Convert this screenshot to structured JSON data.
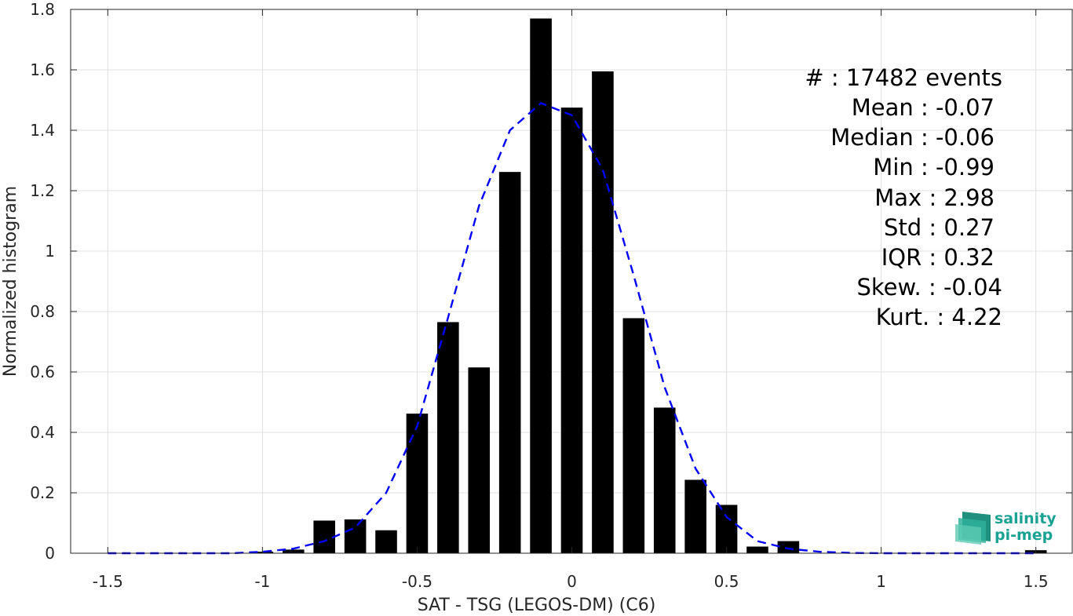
{
  "chart_data": {
    "type": "bar",
    "xlabel": "SAT - TSG (LEGOS-DM) (C6)",
    "ylabel": "Normalized histogram",
    "xlim": [
      -1.62,
      1.62
    ],
    "ylim": [
      0,
      1.8
    ],
    "xticks": [
      -1.5,
      -1,
      -0.5,
      0,
      0.5,
      1,
      1.5
    ],
    "xtick_labels": [
      "-1.5",
      "-1",
      "-0.5",
      "0",
      "0.5",
      "1",
      "1.5"
    ],
    "yticks": [
      0,
      0.2,
      0.4,
      0.6,
      0.8,
      1,
      1.2,
      1.4,
      1.6,
      1.8
    ],
    "ytick_labels": [
      "0",
      "0.2",
      "0.4",
      "0.6",
      "0.8",
      "1",
      "1.2",
      "1.4",
      "1.6",
      "1.8"
    ],
    "grid": true,
    "bin_width": 0.07,
    "bars": {
      "x": [
        -1.0,
        -0.9,
        -0.8,
        -0.7,
        -0.6,
        -0.5,
        -0.4,
        -0.3,
        -0.2,
        -0.1,
        0.0,
        0.1,
        0.2,
        0.3,
        0.4,
        0.5,
        0.6,
        0.7,
        1.5
      ],
      "values": [
        0.005,
        0.012,
        0.108,
        0.112,
        0.076,
        0.462,
        0.765,
        0.615,
        1.262,
        1.77,
        1.475,
        1.595,
        0.778,
        0.482,
        0.243,
        0.16,
        0.022,
        0.04,
        0.01
      ],
      "color": "#000000"
    },
    "fit_curve": {
      "style": "dashed",
      "color": "#0000ff",
      "x": [
        -1.5,
        -1.3,
        -1.2,
        -1.1,
        -1.0,
        -0.9,
        -0.8,
        -0.7,
        -0.6,
        -0.5,
        -0.4,
        -0.3,
        -0.2,
        -0.1,
        0.0,
        0.1,
        0.2,
        0.3,
        0.4,
        0.5,
        0.6,
        0.7,
        0.8,
        0.9,
        1.0,
        1.1,
        1.2,
        1.3,
        1.5
      ],
      "y": [
        0.0,
        0.0,
        0.0,
        0.0,
        0.005,
        0.015,
        0.04,
        0.085,
        0.2,
        0.42,
        0.78,
        1.15,
        1.4,
        1.49,
        1.45,
        1.27,
        0.92,
        0.55,
        0.28,
        0.12,
        0.04,
        0.015,
        0.005,
        0.001,
        0.0,
        0.0,
        0.0,
        0.0,
        0.0
      ]
    },
    "annotations": [
      "#  : 17482 events",
      "Mean : -0.07",
      "Median : -0.06",
      "Min : -0.99",
      "Max : 2.98",
      "Std : 0.27",
      "IQR : 0.32",
      "Skew. : -0.04",
      "Kurt. : 4.22"
    ]
  },
  "logo": {
    "line1": "salinity",
    "line2": "pi-mep",
    "color": "#1aa394"
  }
}
